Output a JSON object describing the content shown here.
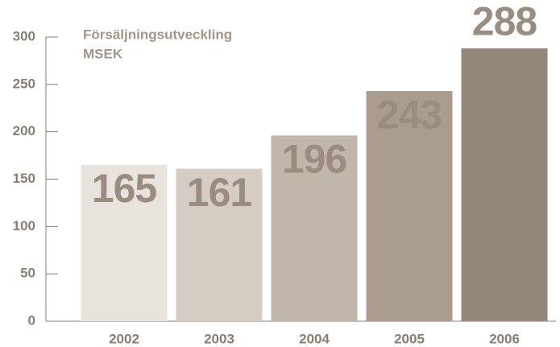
{
  "chart_data": {
    "type": "bar",
    "title": "Försäljningsutveckling",
    "subtitle": "MSEK",
    "categories": [
      "2002",
      "2003",
      "2004",
      "2005",
      "2006"
    ],
    "values": [
      165,
      161,
      196,
      243,
      288
    ],
    "colors": [
      "#e8e3dd",
      "#d5cdc3",
      "#c0b6aa",
      "#aa9d90",
      "#958779"
    ],
    "label_color": "#9a8c7f",
    "ylim": [
      0,
      300
    ],
    "yticks": [
      0,
      50,
      100,
      150,
      200,
      250,
      300
    ]
  }
}
